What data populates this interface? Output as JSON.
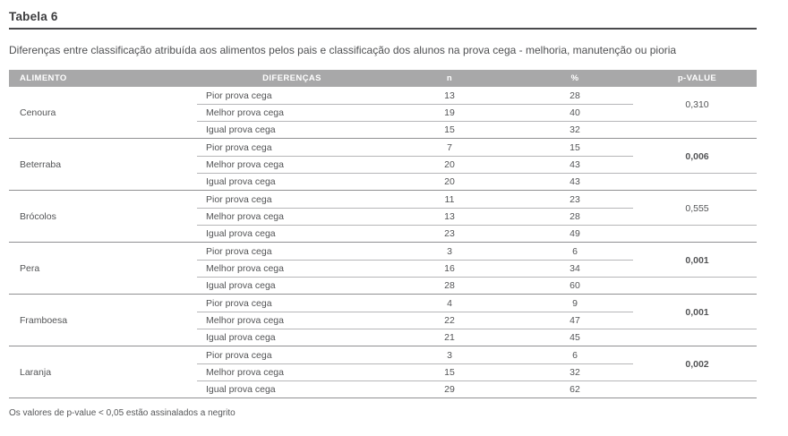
{
  "page": {
    "title": "Tabela 6",
    "subtitle": "Diferenças entre classificação atribuída aos alimentos pelos pais e classificação dos alunos na prova cega  - melhoria, manutenção ou pioria",
    "footnote": "Os valores de p-value < 0,05 estão assinalados a negrito"
  },
  "colors": {
    "header_bg": "#a8a8a9",
    "header_text": "#ffffff",
    "body_text": "#535456",
    "title_rule": "#4a4a4c",
    "row_separator": "#b6b6b8",
    "group_separator": "#909092"
  },
  "table": {
    "headers": [
      "ALIMENTO",
      "DIFERENÇAS",
      "n",
      "%",
      "p-VALUE"
    ],
    "groups": [
      {
        "alimento": "Cenoura",
        "p_value": "0,310",
        "p_bold": false,
        "rows": [
          {
            "diferenca": "Pior prova cega",
            "n": "13",
            "pct": "28"
          },
          {
            "diferenca": "Melhor prova cega",
            "n": "19",
            "pct": "40"
          },
          {
            "diferenca": "Igual prova cega",
            "n": "15",
            "pct": "32"
          }
        ]
      },
      {
        "alimento": "Beterraba",
        "p_value": "0,006",
        "p_bold": true,
        "rows": [
          {
            "diferenca": "Pior prova cega",
            "n": "7",
            "pct": "15"
          },
          {
            "diferenca": "Melhor prova cega",
            "n": "20",
            "pct": "43"
          },
          {
            "diferenca": "Igual prova cega",
            "n": "20",
            "pct": "43"
          }
        ]
      },
      {
        "alimento": "Brócolos",
        "p_value": "0,555",
        "p_bold": false,
        "rows": [
          {
            "diferenca": "Pior prova cega",
            "n": "11",
            "pct": "23"
          },
          {
            "diferenca": "Melhor prova cega",
            "n": "13",
            "pct": "28"
          },
          {
            "diferenca": "Igual prova cega",
            "n": "23",
            "pct": "49"
          }
        ]
      },
      {
        "alimento": "Pera",
        "p_value": "0,001",
        "p_bold": true,
        "rows": [
          {
            "diferenca": "Pior prova cega",
            "n": "3",
            "pct": "6"
          },
          {
            "diferenca": "Melhor prova cega",
            "n": "16",
            "pct": "34"
          },
          {
            "diferenca": "Igual prova cega",
            "n": "28",
            "pct": "60"
          }
        ]
      },
      {
        "alimento": "Framboesa",
        "p_value": "0,001",
        "p_bold": true,
        "rows": [
          {
            "diferenca": "Pior prova cega",
            "n": "4",
            "pct": "9"
          },
          {
            "diferenca": "Melhor prova cega",
            "n": "22",
            "pct": "47"
          },
          {
            "diferenca": "Igual prova cega",
            "n": "21",
            "pct": "45"
          }
        ]
      },
      {
        "alimento": "Laranja",
        "p_value": "0,002",
        "p_bold": true,
        "rows": [
          {
            "diferenca": "Pior prova cega",
            "n": "3",
            "pct": "6"
          },
          {
            "diferenca": "Melhor prova cega",
            "n": "15",
            "pct": "32"
          },
          {
            "diferenca": "Igual prova cega",
            "n": "29",
            "pct": "62"
          }
        ]
      }
    ]
  }
}
